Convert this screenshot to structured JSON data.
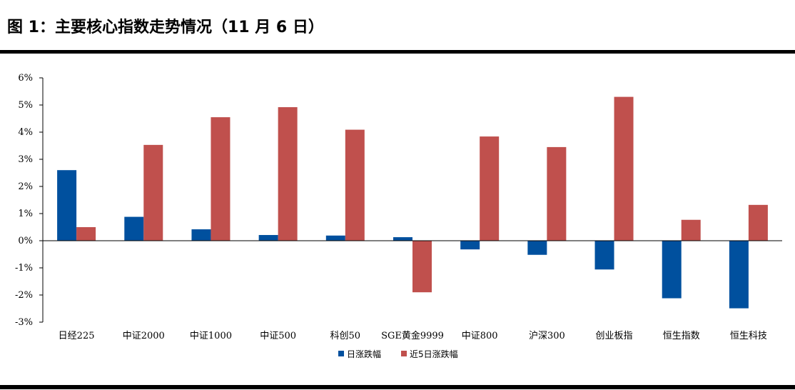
{
  "header": {
    "title": "图 1：主要核心指数走势情况（11 月 6 日）"
  },
  "chart_data": {
    "type": "bar",
    "title": "",
    "xlabel": "",
    "ylabel": "",
    "ylim": [
      -3,
      6
    ],
    "yticks": [
      -3,
      -2,
      -1,
      0,
      1,
      2,
      3,
      4,
      5,
      6
    ],
    "ytick_labels": [
      "-3%",
      "-2%",
      "-1%",
      "0%",
      "1%",
      "2%",
      "3%",
      "4%",
      "5%",
      "6%"
    ],
    "unit": "%",
    "grid": false,
    "legend_position": "bottom",
    "categories": [
      "日经225",
      "中证2000",
      "中证1000",
      "中证500",
      "科创50",
      "SGE黄金9999",
      "中证800",
      "沪深300",
      "创业板指",
      "恒生指数",
      "恒生科技"
    ],
    "series": [
      {
        "name": "日涨跌幅",
        "color": "#00509E",
        "values": [
          2.6,
          0.88,
          0.42,
          0.21,
          0.19,
          0.13,
          -0.32,
          -0.52,
          -1.06,
          -2.12,
          -2.49
        ]
      },
      {
        "name": "近5日涨跌幅",
        "color": "#C0504D",
        "values": [
          0.5,
          3.53,
          4.55,
          4.92,
          4.09,
          -1.9,
          3.84,
          3.45,
          5.3,
          0.77,
          1.32
        ]
      }
    ]
  }
}
